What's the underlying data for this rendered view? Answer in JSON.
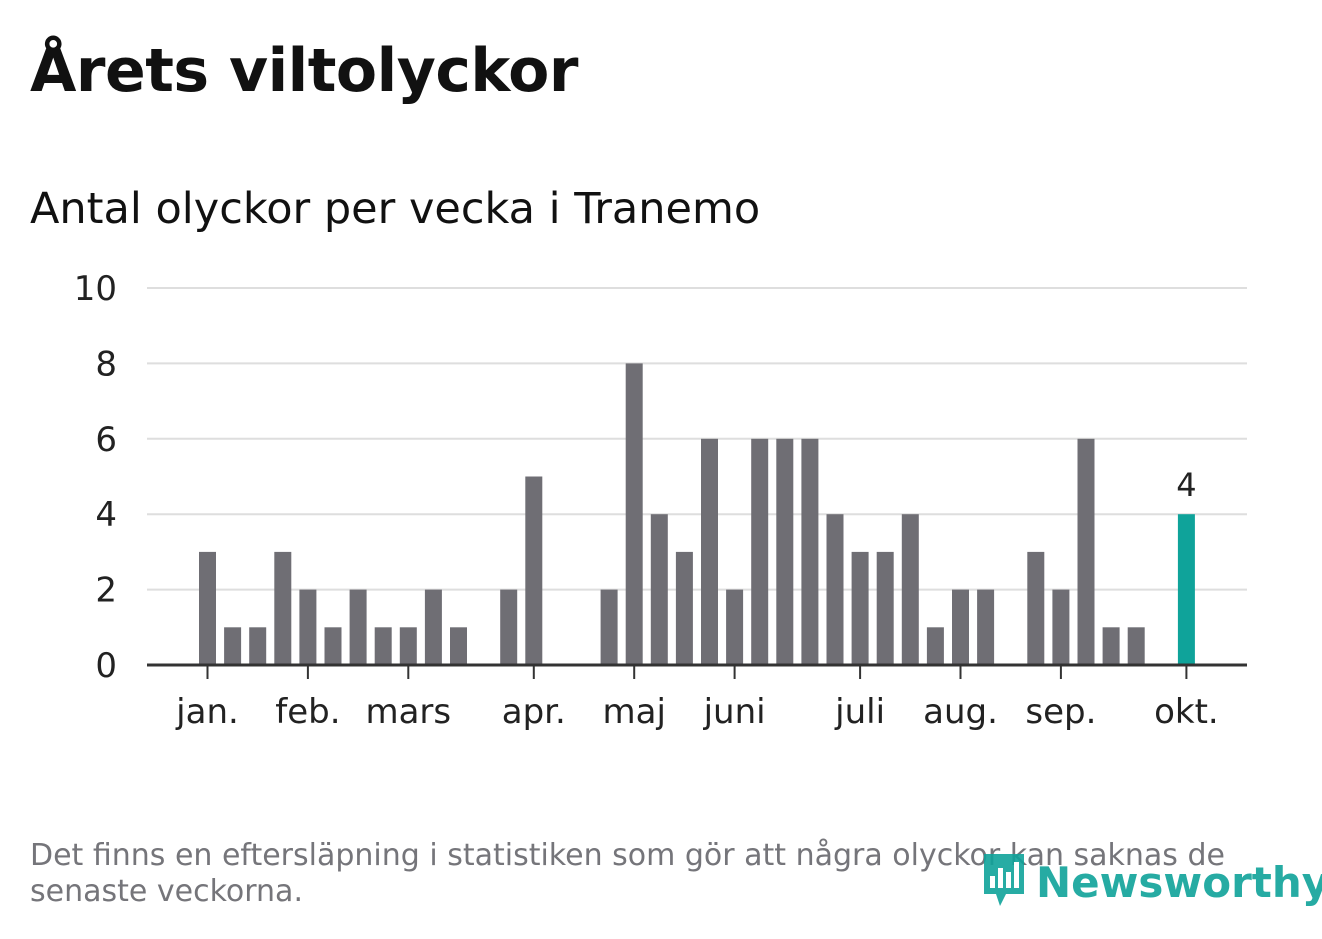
{
  "title": "Årets viltolyckor",
  "subtitle": "Antal olyckor per vecka i Tranemo",
  "footnote": "Det finns en eftersläpning i statistiken som gör att några olyckor kan saknas de senaste veckorna.",
  "logo_text": "Newsworthy",
  "colors": {
    "bar": "#6f6e74",
    "highlight": "#0fa39a",
    "grid": "#dedede",
    "axis": "#333333"
  },
  "chart_data": {
    "type": "bar",
    "title": "Årets viltolyckor",
    "subtitle": "Antal olyckor per vecka i Tranemo",
    "xlabel": "",
    "ylabel": "",
    "ylim": [
      0,
      10
    ],
    "yticks": [
      0,
      2,
      4,
      6,
      8,
      10
    ],
    "grid": true,
    "weeks": [
      1,
      2,
      3,
      4,
      5,
      6,
      7,
      8,
      9,
      10,
      11,
      12,
      13,
      14,
      15,
      16,
      17,
      18,
      19,
      20,
      21,
      22,
      23,
      24,
      25,
      26,
      27,
      28,
      29,
      30,
      31,
      32,
      33,
      34,
      35,
      36,
      37,
      38,
      39,
      40
    ],
    "values": [
      3,
      1,
      1,
      3,
      2,
      1,
      2,
      1,
      1,
      2,
      1,
      0,
      2,
      5,
      0,
      0,
      2,
      8,
      4,
      3,
      6,
      2,
      6,
      6,
      6,
      4,
      3,
      3,
      4,
      1,
      2,
      2,
      0,
      3,
      2,
      6,
      1,
      1,
      0,
      4
    ],
    "month_ticks": [
      {
        "label": "jan.",
        "week": 1
      },
      {
        "label": "feb.",
        "week": 5
      },
      {
        "label": "mars",
        "week": 9
      },
      {
        "label": "apr.",
        "week": 14
      },
      {
        "label": "maj",
        "week": 18
      },
      {
        "label": "juni",
        "week": 22
      },
      {
        "label": "juli",
        "week": 27
      },
      {
        "label": "aug.",
        "week": 31
      },
      {
        "label": "sep.",
        "week": 35
      },
      {
        "label": "okt.",
        "week": 40
      }
    ],
    "highlight_week": 40,
    "highlight_label": "4"
  }
}
